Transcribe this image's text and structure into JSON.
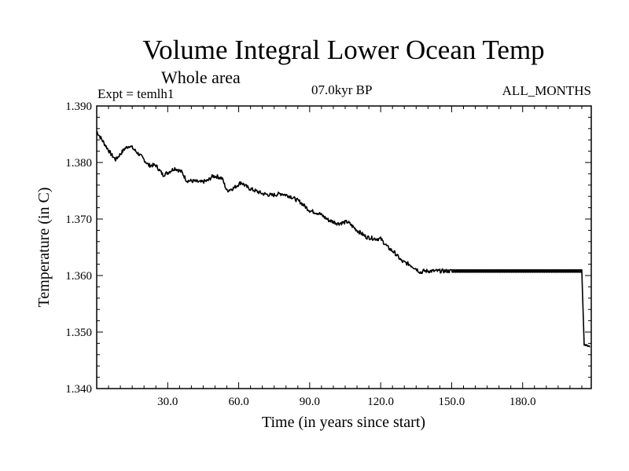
{
  "header": {
    "title": "Volume Integral Lower Ocean Temp",
    "subtitle": "Whole area",
    "experiment": "Expt = temlh1",
    "period": "07.0kyr BP",
    "season": "ALL_MONTHS"
  },
  "chart_data": {
    "type": "line",
    "title": "Volume Integral Lower Ocean Temp",
    "subtitle": "Whole area",
    "xlabel": "Time (in years since start)",
    "ylabel": "Temperature (in C)",
    "xlim": [
      0,
      209
    ],
    "ylim": [
      1.34,
      1.39
    ],
    "x_ticks": [
      30,
      60,
      90,
      120,
      150,
      180
    ],
    "x_tick_labels": [
      "30.0",
      "60.0",
      "90.0",
      "120.0",
      "150.0",
      "180.0"
    ],
    "y_ticks": [
      1.34,
      1.35,
      1.36,
      1.37,
      1.38,
      1.39
    ],
    "y_tick_labels": [
      "1.340",
      "1.350",
      "1.360",
      "1.370",
      "1.380",
      "1.390"
    ],
    "grid": false,
    "series": [
      {
        "name": "temlh1",
        "color": "#000000",
        "x": [
          0,
          3,
          6,
          8,
          10,
          12,
          14,
          16,
          19,
          22,
          25,
          28,
          30,
          33,
          36,
          38,
          41,
          44,
          47,
          49,
          51,
          53,
          55,
          58,
          61,
          64,
          67,
          70,
          74,
          78,
          82,
          86,
          90,
          94,
          98,
          102,
          106,
          110,
          114,
          118,
          120,
          123,
          126,
          129,
          132,
          135,
          137,
          138,
          150,
          165,
          180,
          196,
          205,
          206,
          208.5
        ],
        "values": [
          1.3855,
          1.3835,
          1.3815,
          1.3805,
          1.3815,
          1.3825,
          1.383,
          1.3822,
          1.381,
          1.3795,
          1.3795,
          1.3778,
          1.3782,
          1.379,
          1.3783,
          1.3768,
          1.3767,
          1.3765,
          1.3768,
          1.3776,
          1.3775,
          1.3772,
          1.375,
          1.3755,
          1.3765,
          1.3755,
          1.375,
          1.3745,
          1.3742,
          1.3745,
          1.374,
          1.373,
          1.3715,
          1.371,
          1.3698,
          1.3692,
          1.3695,
          1.368,
          1.3668,
          1.3665,
          1.3665,
          1.365,
          1.364,
          1.3625,
          1.362,
          1.3612,
          1.3605,
          1.3608,
          1.3608,
          1.3608,
          1.3608,
          1.3608,
          1.3608,
          1.3478,
          1.3475
        ]
      }
    ]
  }
}
